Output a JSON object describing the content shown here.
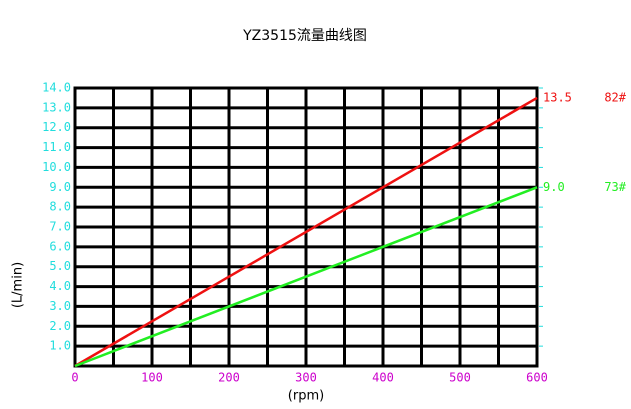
{
  "chart_data": {
    "type": "line",
    "title": "YZ3515流量曲线图",
    "xlabel": "(rpm)",
    "ylabel": "(L/min)",
    "x": [
      0,
      600
    ],
    "series": [
      {
        "name": "82#",
        "color": "#ee1111",
        "values": [
          0,
          13.5
        ],
        "value_labels": [
          null,
          "13.5"
        ]
      },
      {
        "name": "73#",
        "color": "#22ee22",
        "values": [
          0,
          9.0
        ],
        "value_labels": [
          null,
          "9.0"
        ]
      }
    ],
    "xlim": [
      0,
      600
    ],
    "xticks": [
      0,
      100,
      200,
      300,
      400,
      500,
      600
    ],
    "xminorticks": [
      50,
      150,
      250,
      350,
      450,
      550
    ],
    "ylim": [
      0,
      14
    ],
    "yticks": [
      {
        "value": 1,
        "label": "1.0"
      },
      {
        "value": 2,
        "label": "2.0"
      },
      {
        "value": 3,
        "label": "3.0"
      },
      {
        "value": 4,
        "label": "4.0"
      },
      {
        "value": 5,
        "label": "5.0"
      },
      {
        "value": 6,
        "label": "6.0"
      },
      {
        "value": 7,
        "label": "7.0"
      },
      {
        "value": 8,
        "label": "8.0"
      },
      {
        "value": 9,
        "label": "9.0"
      },
      {
        "value": 10,
        "label": "10.0"
      },
      {
        "value": 11,
        "label": "11.0"
      },
      {
        "value": 12,
        "label": "12.0"
      },
      {
        "value": 13,
        "label": "13.0"
      },
      {
        "value": 14,
        "label": "14.0"
      }
    ],
    "grid": true,
    "ytick_color": "#22dddd",
    "xtick_color": "#cc00cc"
  }
}
